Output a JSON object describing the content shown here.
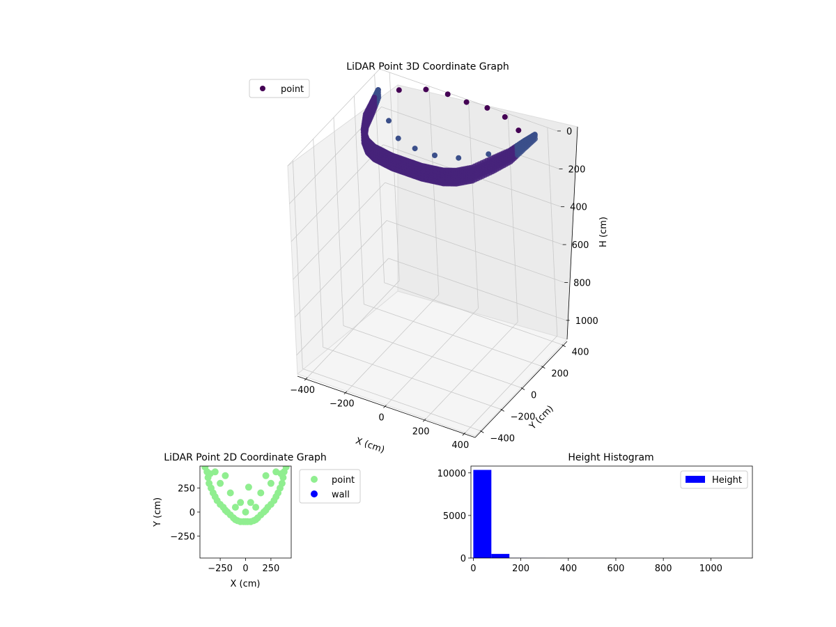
{
  "chart_data": [
    {
      "type": "scatter",
      "projection": "3d",
      "title": "LiDAR Point 3D Coordinate Graph",
      "xlabel": "X (cm)",
      "ylabel": "Y (cm)",
      "zlabel": "H (cm)",
      "xlim": [
        -450,
        450
      ],
      "ylim": [
        -450,
        450
      ],
      "zlim": [
        1100,
        0
      ],
      "xticks": [
        "−400",
        "−200",
        "0",
        "200",
        "400"
      ],
      "yticks": [
        "400",
        "200",
        "0",
        "−200",
        "−400"
      ],
      "zticks": [
        "0",
        "200",
        "400",
        "600",
        "800",
        "1000"
      ],
      "grid": true,
      "legend": {
        "entries": [
          "point"
        ],
        "placement": "top-left",
        "color": "#440154"
      },
      "colormap": "viridis",
      "series": [
        {
          "name": "point",
          "description_of_extent": "dense U-shaped ring near H 0-100, sparse points at H 0",
          "x": [
            -380,
            -360,
            -340,
            -300,
            -250,
            -200,
            -150,
            -100,
            -50,
            0,
            50,
            100,
            150,
            200,
            250,
            300,
            340,
            360,
            380,
            -300,
            -200,
            -100,
            0,
            100,
            200,
            300,
            -250,
            -150,
            -50,
            50,
            150,
            250
          ],
          "y": [
            300,
            200,
            100,
            0,
            -60,
            -90,
            -100,
            -110,
            -110,
            -110,
            -110,
            -100,
            -90,
            -60,
            0,
            100,
            200,
            300,
            380,
            350,
            420,
            440,
            430,
            440,
            420,
            360,
            150,
            50,
            20,
            20,
            60,
            160
          ],
          "h": [
            40,
            60,
            70,
            80,
            80,
            80,
            80,
            80,
            80,
            80,
            80,
            80,
            80,
            80,
            80,
            70,
            60,
            40,
            20,
            0,
            0,
            0,
            0,
            0,
            0,
            0,
            30,
            30,
            30,
            30,
            30,
            30
          ]
        }
      ]
    },
    {
      "type": "scatter",
      "title": "LiDAR Point 2D Coordinate Graph",
      "xlabel": "X (cm)",
      "ylabel": "Y (cm)",
      "xlim": [
        -450,
        450
      ],
      "ylim": [
        -480,
        480
      ],
      "xticks": [
        -250,
        0,
        250
      ],
      "yticks": [
        -250,
        0,
        250
      ],
      "legend": {
        "placement": "right",
        "entries": [
          "point",
          "wall"
        ]
      },
      "colors": {
        "point": "#90ee90",
        "wall": "#0000ff"
      },
      "series": [
        {
          "name": "point",
          "x": [
            -400,
            -380,
            -370,
            -360,
            -340,
            -320,
            -300,
            -280,
            -250,
            -220,
            -200,
            -180,
            -150,
            -120,
            -100,
            -80,
            -50,
            -20,
            0,
            20,
            50,
            80,
            100,
            120,
            150,
            180,
            200,
            220,
            250,
            280,
            300,
            320,
            340,
            360,
            370,
            380,
            400,
            -300,
            -200,
            -250,
            -150,
            150,
            250,
            200,
            300,
            -350,
            350,
            0,
            -100,
            100,
            -50,
            50,
            30
          ],
          "y": [
            470,
            420,
            360,
            300,
            250,
            200,
            160,
            120,
            80,
            50,
            20,
            0,
            -30,
            -60,
            -80,
            -90,
            -100,
            -100,
            -100,
            -100,
            -100,
            -90,
            -80,
            -60,
            -30,
            0,
            20,
            50,
            80,
            120,
            160,
            200,
            250,
            300,
            360,
            420,
            470,
            420,
            380,
            300,
            200,
            200,
            300,
            380,
            420,
            400,
            400,
            0,
            50,
            50,
            100,
            100,
            260
          ]
        },
        {
          "name": "wall",
          "x": [],
          "y": []
        }
      ]
    },
    {
      "type": "bar",
      "title": "Height Histogram",
      "xlabel": "",
      "ylabel": "",
      "xlim": [
        -10,
        1175
      ],
      "ylim": [
        0,
        10800
      ],
      "xticks": [
        0,
        200,
        400,
        600,
        800,
        1000
      ],
      "yticks": [
        0,
        5000,
        10000
      ],
      "legend": {
        "placement": "top-right",
        "entries": [
          "Height"
        ]
      },
      "color": "#0000ff",
      "bin_width": 76,
      "series": [
        {
          "name": "Height",
          "bins_start": [
            0,
            76,
            152,
            228,
            304,
            380,
            456,
            532,
            608,
            684,
            760,
            836,
            912,
            988,
            1064
          ],
          "values": [
            10350,
            480,
            15,
            5,
            3,
            2,
            2,
            1,
            1,
            1,
            1,
            1,
            1,
            1,
            1
          ]
        }
      ]
    }
  ]
}
